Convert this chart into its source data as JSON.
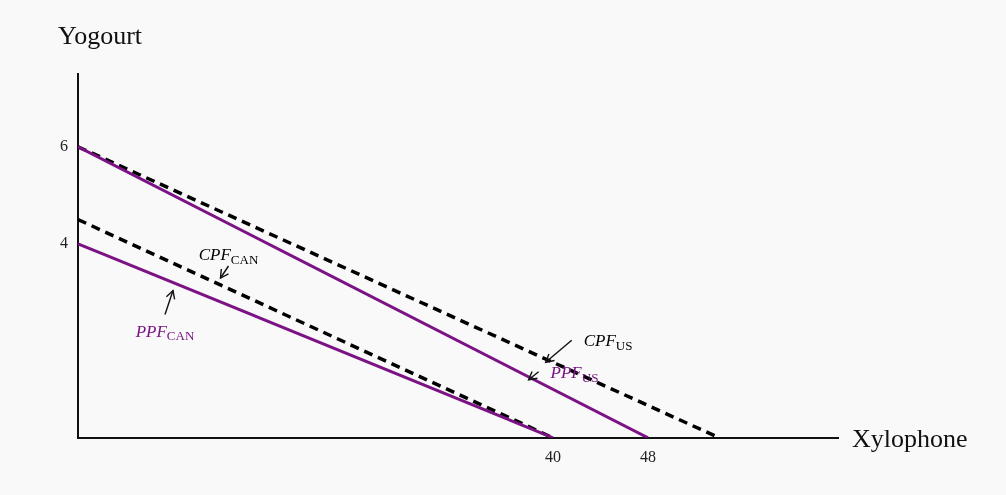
{
  "chart_data": {
    "type": "line",
    "xlabel": "Xylophone",
    "ylabel": "Yogourt",
    "xlim": [
      0,
      64
    ],
    "ylim": [
      0,
      7.5
    ],
    "xticks": [
      40,
      48
    ],
    "yticks": [
      4,
      6
    ],
    "grid": false,
    "legend": false,
    "marker": "none",
    "series": [
      {
        "name": "PPF$_{US}$",
        "color": "#7b1385",
        "x": [
          0,
          48
        ],
        "values": [
          6,
          0
        ],
        "line_style": "solid"
      },
      {
        "name": "CPF$_{US}$",
        "color": "#000000",
        "x": [
          0,
          54
        ],
        "values": [
          6,
          0
        ],
        "line_style": "dashed"
      },
      {
        "name": "PPF$_{CAN}$",
        "color": "#7b1385",
        "x": [
          0,
          40
        ],
        "values": [
          4,
          0
        ],
        "line_style": "solid"
      },
      {
        "name": "CPF$_{CAN}$",
        "color": "#000000",
        "x": [
          0,
          40
        ],
        "values": [
          4.5,
          0
        ],
        "line_style": "dashed"
      }
    ]
  }
}
